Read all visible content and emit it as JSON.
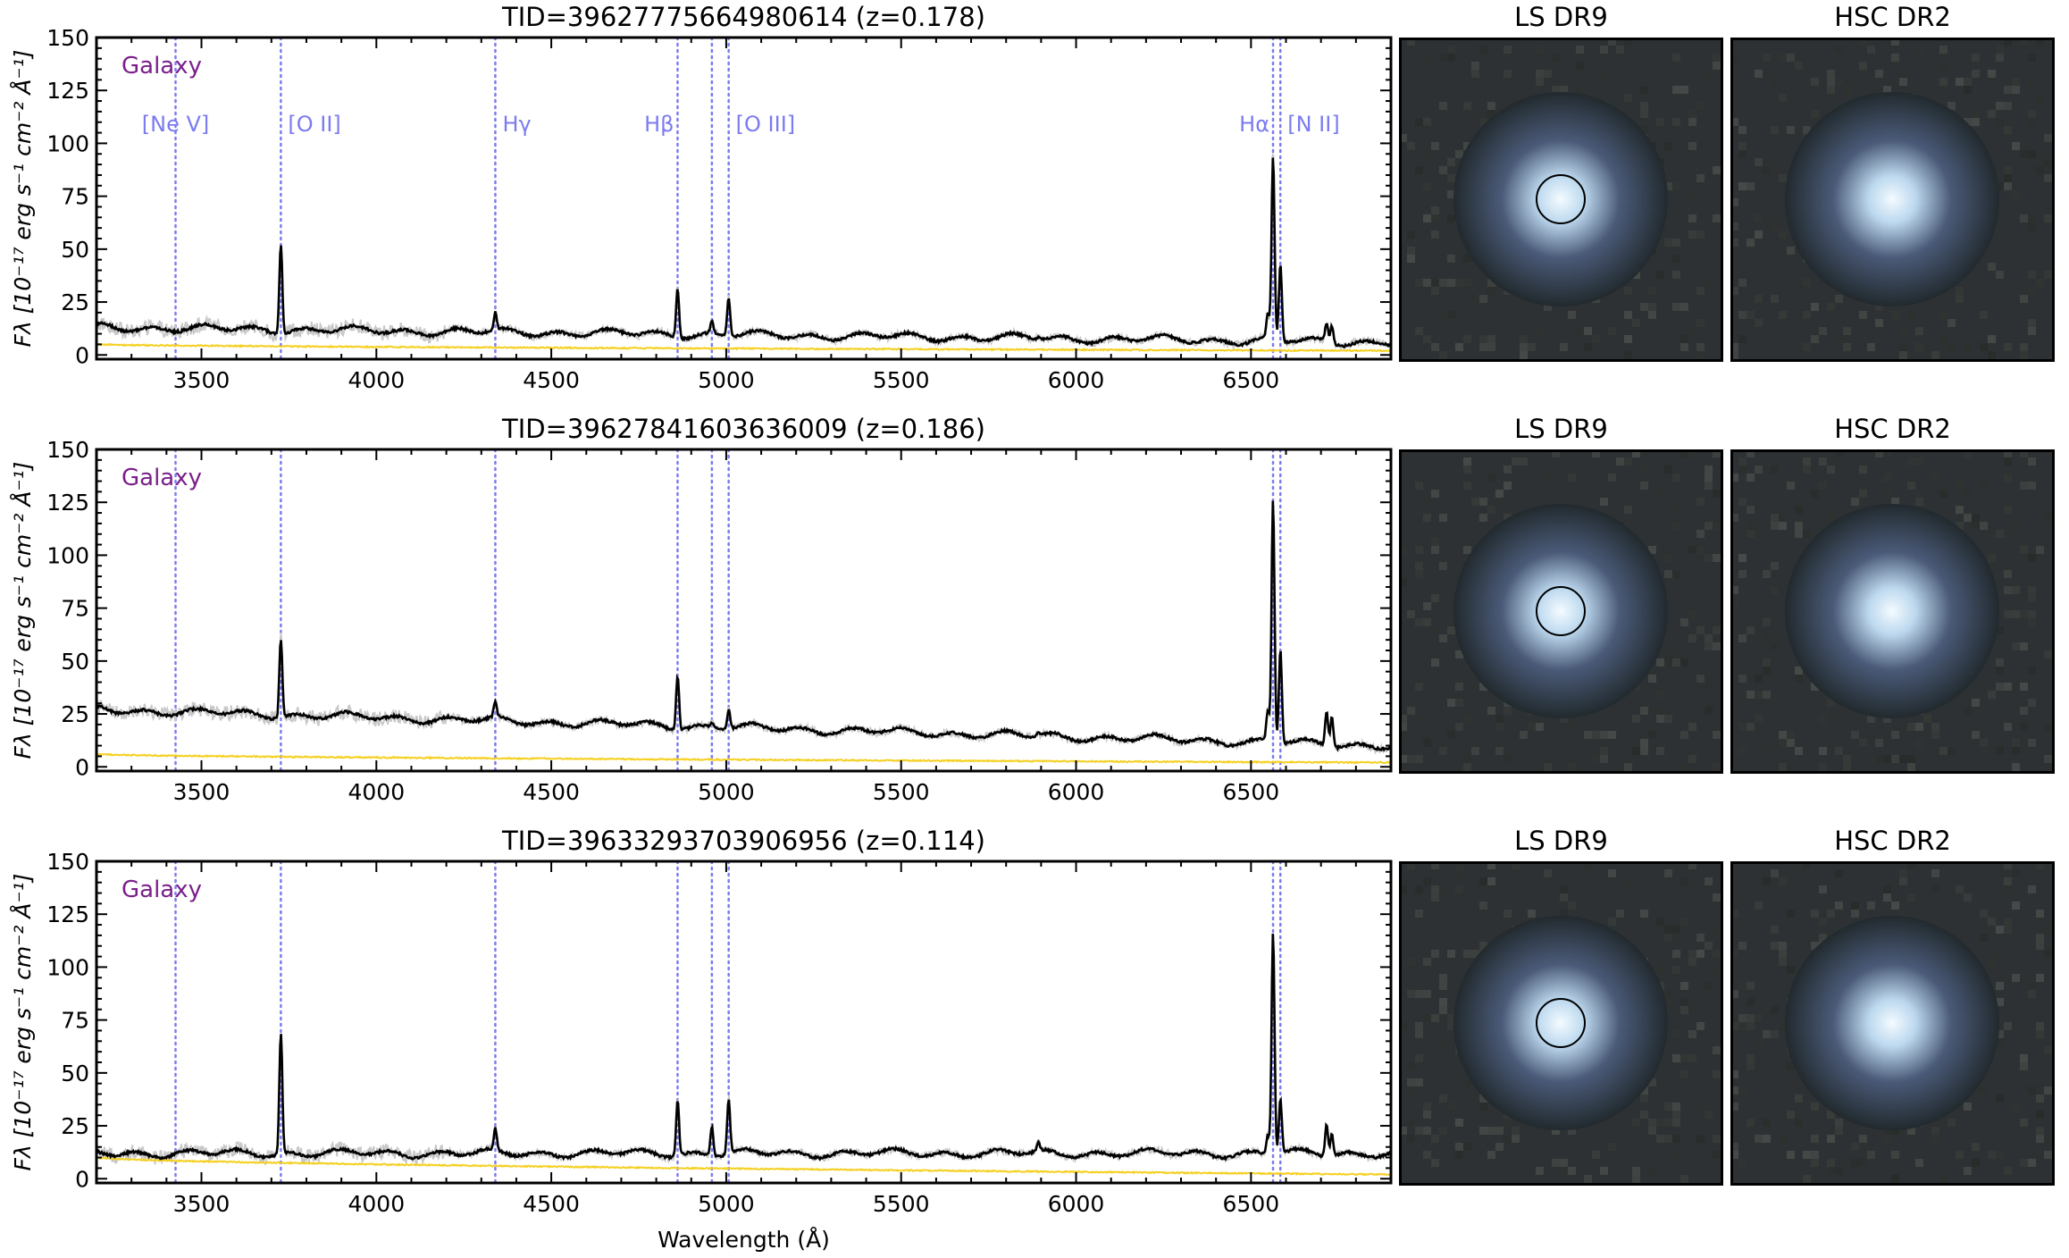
{
  "chart_data": {
    "type": "line",
    "shared": {
      "xlabel": "Wavelength (Å)",
      "ylabel": "Fλ [10⁻¹⁷ erg s⁻¹ cm⁻² Å⁻¹]",
      "xlim": [
        3200,
        6900
      ],
      "ylim": [
        -2,
        150
      ],
      "xticks": [
        3500,
        4000,
        4500,
        5000,
        5500,
        6000,
        6500
      ],
      "yticks": [
        0,
        25,
        50,
        75,
        100,
        125,
        150
      ],
      "grid": false,
      "line_colors": {
        "line_markers": "#7b7bf0",
        "spectrum": "#000000",
        "raw": "#c8c8c8",
        "error": "#f5d020",
        "class_label": "#7a1f8a"
      },
      "line_markers": [
        {
          "label": "[Ne V]",
          "wavelength": 3426
        },
        {
          "label": "[O II]",
          "wavelength": 3727
        },
        {
          "label": "Hγ",
          "wavelength": 4340
        },
        {
          "label": "Hβ",
          "wavelength": 4861
        },
        {
          "label": "",
          "wavelength": 4959
        },
        {
          "label": "[O III]",
          "wavelength": 5007
        },
        {
          "label": "Hα",
          "wavelength": 6563
        },
        {
          "label": "[N II]",
          "wavelength": 6584
        }
      ]
    },
    "panels": [
      {
        "title": "TID=39627775664980614 (z=0.178)",
        "class_label": "Galaxy",
        "continuum": {
          "start": 13,
          "end": 6
        },
        "error_level": {
          "start": 5,
          "end": 2
        },
        "peaks": [
          {
            "wavelength": 3727,
            "value": 54
          },
          {
            "wavelength": 4340,
            "value": 19
          },
          {
            "wavelength": 4861,
            "value": 33
          },
          {
            "wavelength": 4959,
            "value": 15
          },
          {
            "wavelength": 5007,
            "value": 28
          },
          {
            "wavelength": 5892,
            "value": 9
          },
          {
            "wavelength": 6548,
            "value": 18
          },
          {
            "wavelength": 6563,
            "value": 93
          },
          {
            "wavelength": 6584,
            "value": 43
          },
          {
            "wavelength": 6716,
            "value": 15
          },
          {
            "wavelength": 6731,
            "value": 15
          }
        ],
        "cutouts": [
          {
            "title": "LS DR9"
          },
          {
            "title": "HSC DR2"
          }
        ]
      },
      {
        "title": "TID=39627841603636009 (z=0.186)",
        "class_label": "Galaxy",
        "continuum": {
          "start": 27,
          "end": 10
        },
        "error_level": {
          "start": 6,
          "end": 2
        },
        "peaks": [
          {
            "wavelength": 3727,
            "value": 62
          },
          {
            "wavelength": 4340,
            "value": 29
          },
          {
            "wavelength": 4861,
            "value": 45
          },
          {
            "wavelength": 4959,
            "value": 21
          },
          {
            "wavelength": 5007,
            "value": 28
          },
          {
            "wavelength": 5892,
            "value": 16
          },
          {
            "wavelength": 6548,
            "value": 26
          },
          {
            "wavelength": 6563,
            "value": 126
          },
          {
            "wavelength": 6584,
            "value": 56
          },
          {
            "wavelength": 6716,
            "value": 27
          },
          {
            "wavelength": 6731,
            "value": 25
          }
        ],
        "cutouts": [
          {
            "title": "LS DR9"
          },
          {
            "title": "HSC DR2"
          }
        ]
      },
      {
        "title": "TID=39633293703906956 (z=0.114)",
        "class_label": "Galaxy",
        "continuum": {
          "start": 12,
          "end": 12
        },
        "error_level": {
          "start": 10,
          "end": 2
        },
        "peaks": [
          {
            "wavelength": 3727,
            "value": 69
          },
          {
            "wavelength": 4340,
            "value": 22
          },
          {
            "wavelength": 4861,
            "value": 38
          },
          {
            "wavelength": 4959,
            "value": 26
          },
          {
            "wavelength": 5007,
            "value": 38
          },
          {
            "wavelength": 5892,
            "value": 16
          },
          {
            "wavelength": 6548,
            "value": 21
          },
          {
            "wavelength": 6563,
            "value": 117
          },
          {
            "wavelength": 6584,
            "value": 38
          },
          {
            "wavelength": 6716,
            "value": 27
          },
          {
            "wavelength": 6731,
            "value": 22
          }
        ],
        "cutouts": [
          {
            "title": "LS DR9"
          },
          {
            "title": "HSC DR2"
          }
        ]
      }
    ]
  }
}
